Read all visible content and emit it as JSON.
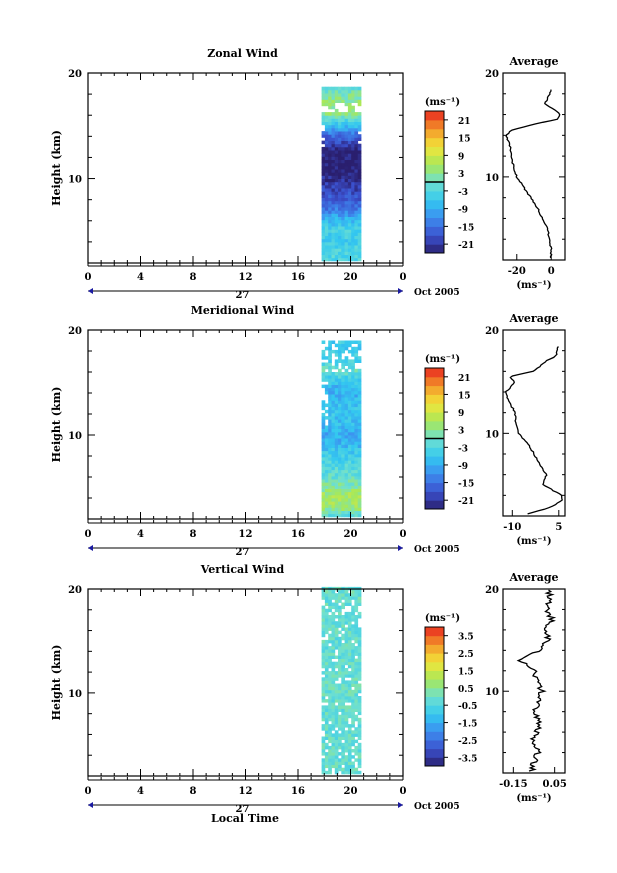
{
  "figure": {
    "x_axis_title": "Local Time",
    "date_label": "Oct 2005",
    "day_label": "27"
  },
  "chart_data": [
    {
      "type": "heatmap",
      "title": "Zonal Wind",
      "ylabel": "Height (km)",
      "xlabel": "Local Time",
      "x_ticks": [
        "0",
        "4",
        "8",
        "12",
        "16",
        "20",
        "0"
      ],
      "xlim": [
        0,
        24
      ],
      "y_ticks": [
        "10",
        "20"
      ],
      "ylim": [
        2,
        20
      ],
      "data_time_range": [
        17.8,
        20.8
      ],
      "colorbar": {
        "unit": "(ms⁻¹)",
        "ticks": [
          "21",
          "15",
          "9",
          "3",
          "-3",
          "-9",
          "-15",
          "-21"
        ],
        "range": [
          -24,
          24
        ],
        "zero_line": true
      },
      "columns_profile": [
        {
          "z": 2.2,
          "v": -3
        },
        {
          "z": 3,
          "v": -3
        },
        {
          "z": 4,
          "v": -5
        },
        {
          "z": 5,
          "v": -4
        },
        {
          "z": 6,
          "v": -8
        },
        {
          "z": 7,
          "v": -14
        },
        {
          "z": 8,
          "v": -17
        },
        {
          "z": 9,
          "v": -20
        },
        {
          "z": 10,
          "v": -22
        },
        {
          "z": 11,
          "v": -24
        },
        {
          "z": 12,
          "v": -24
        },
        {
          "z": 13,
          "v": -21
        },
        {
          "z": 14,
          "v": -15
        },
        {
          "z": 15,
          "v": -6
        },
        {
          "z": 16,
          "v": 3
        },
        {
          "z": 17,
          "v": 4
        },
        {
          "z": 18,
          "v": 1
        },
        {
          "z": 18.5,
          "v": -2
        }
      ],
      "average": {
        "title": "Average",
        "unit": "(ms⁻¹)",
        "x_ticks": [
          "-20",
          "0"
        ],
        "x_tick_values": [
          -20,
          0
        ],
        "xlim": [
          -28,
          8
        ],
        "ylim": [
          2,
          20
        ],
        "y_ticks": [
          "10",
          "20"
        ],
        "profile": [
          {
            "z": 2.2,
            "v": 0
          },
          {
            "z": 3,
            "v": 0
          },
          {
            "z": 4,
            "v": -1
          },
          {
            "z": 5,
            "v": -2
          },
          {
            "z": 6,
            "v": -5
          },
          {
            "z": 7,
            "v": -8
          },
          {
            "z": 8,
            "v": -12
          },
          {
            "z": 9,
            "v": -16
          },
          {
            "z": 10,
            "v": -20
          },
          {
            "z": 11,
            "v": -22
          },
          {
            "z": 12,
            "v": -23
          },
          {
            "z": 13,
            "v": -24
          },
          {
            "z": 14,
            "v": -26
          },
          {
            "z": 14.5,
            "v": -23
          },
          {
            "z": 15,
            "v": -12
          },
          {
            "z": 15.5,
            "v": 3
          },
          {
            "z": 16,
            "v": 5
          },
          {
            "z": 16.5,
            "v": 2
          },
          {
            "z": 17,
            "v": -4
          },
          {
            "z": 17.5,
            "v": -2
          },
          {
            "z": 18.5,
            "v": 0
          }
        ]
      }
    },
    {
      "type": "heatmap",
      "title": "Meridional Wind",
      "ylabel": "Height (km)",
      "xlabel": "Local Time",
      "x_ticks": [
        "0",
        "4",
        "8",
        "12",
        "16",
        "20",
        "0"
      ],
      "xlim": [
        0,
        24
      ],
      "y_ticks": [
        "10",
        "20"
      ],
      "ylim": [
        2,
        20
      ],
      "data_time_range": [
        17.8,
        20.8
      ],
      "colorbar": {
        "unit": "(ms⁻¹)",
        "ticks": [
          "21",
          "15",
          "9",
          "3",
          "-3",
          "-9",
          "-15",
          "-21"
        ],
        "range": [
          -24,
          24
        ],
        "zero_line": true
      },
      "columns_profile": [
        {
          "z": 2.2,
          "v": -2
        },
        {
          "z": 3,
          "v": 5
        },
        {
          "z": 4,
          "v": 6
        },
        {
          "z": 5,
          "v": 2
        },
        {
          "z": 6,
          "v": -1
        },
        {
          "z": 7,
          "v": -3
        },
        {
          "z": 8,
          "v": -5
        },
        {
          "z": 9,
          "v": -8
        },
        {
          "z": 10,
          "v": -9
        },
        {
          "z": 11,
          "v": -7
        },
        {
          "z": 12,
          "v": -6
        },
        {
          "z": 13,
          "v": -7
        },
        {
          "z": 14,
          "v": -9
        },
        {
          "z": 15,
          "v": -6
        },
        {
          "z": 16,
          "v": 0
        },
        {
          "z": 17,
          "v": -4
        },
        {
          "z": 18,
          "v": -5
        }
      ],
      "average": {
        "title": "Average",
        "unit": "(ms⁻¹)",
        "x_ticks": [
          "-10",
          "5"
        ],
        "x_tick_values": [
          -10,
          5
        ],
        "xlim": [
          -13,
          7
        ],
        "ylim": [
          2,
          20
        ],
        "y_ticks": [
          "10",
          "20"
        ],
        "profile": [
          {
            "z": 2.2,
            "v": -5
          },
          {
            "z": 2.8,
            "v": 2
          },
          {
            "z": 3.5,
            "v": 6
          },
          {
            "z": 4,
            "v": 6
          },
          {
            "z": 4.5,
            "v": 3
          },
          {
            "z": 5,
            "v": 0
          },
          {
            "z": 6,
            "v": 1
          },
          {
            "z": 7,
            "v": -1
          },
          {
            "z": 8,
            "v": -3
          },
          {
            "z": 9,
            "v": -5
          },
          {
            "z": 10,
            "v": -8
          },
          {
            "z": 11,
            "v": -9
          },
          {
            "z": 12,
            "v": -9
          },
          {
            "z": 13,
            "v": -11
          },
          {
            "z": 14,
            "v": -12
          },
          {
            "z": 15,
            "v": -9
          },
          {
            "z": 15.5,
            "v": -11
          },
          {
            "z": 16,
            "v": -3
          },
          {
            "z": 17,
            "v": 1
          },
          {
            "z": 17.5,
            "v": 4
          },
          {
            "z": 18.5,
            "v": 5
          }
        ]
      }
    },
    {
      "type": "heatmap",
      "title": "Vertical Wind",
      "ylabel": "Height (km)",
      "xlabel": "Local Time",
      "x_ticks": [
        "0",
        "4",
        "8",
        "12",
        "16",
        "20",
        "0"
      ],
      "xlim": [
        0,
        24
      ],
      "y_ticks": [
        "10",
        "20"
      ],
      "ylim": [
        2,
        20
      ],
      "data_time_range": [
        17.8,
        20.8
      ],
      "colorbar": {
        "unit": "(ms⁻¹)",
        "ticks": [
          "3.5",
          "2.5",
          "1.5",
          "0.5",
          "-0.5",
          "-1.5",
          "-2.5",
          "-3.5"
        ],
        "range": [
          -4,
          4
        ],
        "zero_line": false
      },
      "columns_profile": [
        {
          "z": 2.2,
          "v": -0.1
        },
        {
          "z": 5,
          "v": -0.2
        },
        {
          "z": 10,
          "v": -0.1
        },
        {
          "z": 15,
          "v": -0.2
        },
        {
          "z": 20,
          "v": -0.1
        }
      ],
      "average": {
        "title": "Average",
        "unit": "(ms⁻¹)",
        "x_ticks": [
          "-0.15",
          "0.05"
        ],
        "x_tick_values": [
          -0.15,
          0.05
        ],
        "xlim": [
          -0.2,
          0.1
        ],
        "ylim": [
          2,
          20
        ],
        "y_ticks": [
          "10",
          "20"
        ],
        "profile": [
          {
            "z": 2.2,
            "v": -0.06
          },
          {
            "z": 3,
            "v": -0.05
          },
          {
            "z": 4,
            "v": -0.03
          },
          {
            "z": 5,
            "v": -0.06
          },
          {
            "z": 6,
            "v": -0.04
          },
          {
            "z": 7,
            "v": -0.02
          },
          {
            "z": 8,
            "v": -0.05
          },
          {
            "z": 9,
            "v": -0.03
          },
          {
            "z": 10,
            "v": -0.01
          },
          {
            "z": 11,
            "v": -0.04
          },
          {
            "z": 12,
            "v": -0.05
          },
          {
            "z": 13,
            "v": -0.12
          },
          {
            "z": 14,
            "v": -0.02
          },
          {
            "z": 15,
            "v": 0.02
          },
          {
            "z": 16,
            "v": 0.0
          },
          {
            "z": 17,
            "v": 0.04
          },
          {
            "z": 18,
            "v": 0.01
          },
          {
            "z": 19,
            "v": 0.03
          },
          {
            "z": 20,
            "v": 0.02
          }
        ]
      }
    }
  ]
}
